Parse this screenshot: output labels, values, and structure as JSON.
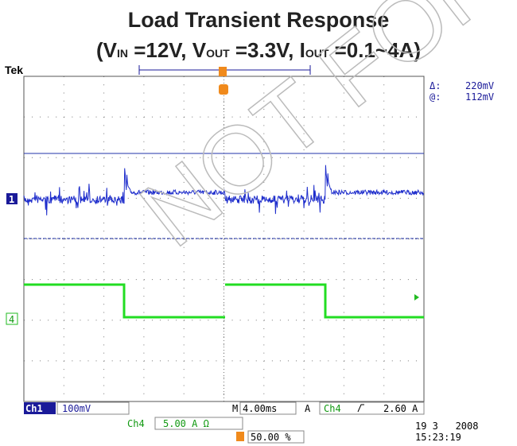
{
  "header": {
    "title": "Load Transient Response",
    "subtitle": [
      {
        "text": "(V"
      },
      {
        "sub": "IN"
      },
      {
        "text": " =12V, V"
      },
      {
        "sub": "OUT"
      },
      {
        "text": " =3.3V, I"
      },
      {
        "sub": "OUT"
      },
      {
        "text": " =0.1~4A)"
      }
    ]
  },
  "scope": {
    "brand": "Tek",
    "cursor_delta_label": "Δ:",
    "cursor_delta": "220mV",
    "cursor_at_label": "@:",
    "cursor_at": "112mV",
    "ch1_marker": "1",
    "ch4_marker": "4",
    "watermark": "NOT FOR"
  },
  "status": {
    "ch1": "Ch1",
    "ch1_scale": "100mV",
    "timebase_label": "M",
    "timebase": "4.00ms",
    "trigger_mode": "A",
    "trigger_source": "Ch4",
    "trigger_level": "2.60 A",
    "ch4": "Ch4",
    "ch4_scale": "5.00 A Ω",
    "trigger_position": "50.00 %",
    "date": "19 3   2008",
    "time": "15:23:19"
  }
}
